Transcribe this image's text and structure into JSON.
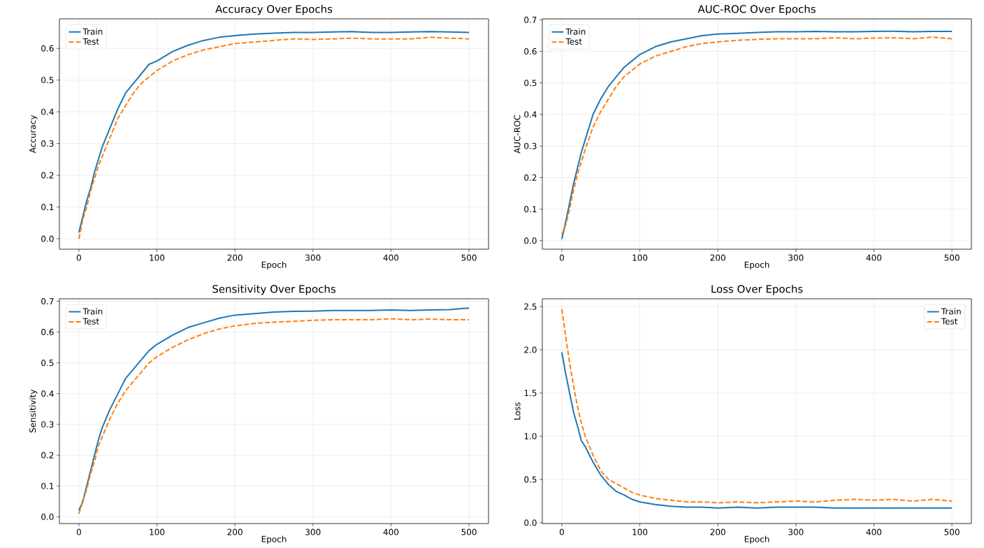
{
  "chart_data": [
    {
      "type": "line",
      "title": "Accuracy Over Epochs",
      "xlabel": "Epoch",
      "ylabel": "Accuracy",
      "grid": true,
      "legend": "top left",
      "marker": "none",
      "x": [
        0,
        5,
        10,
        15,
        20,
        25,
        30,
        40,
        50,
        60,
        70,
        80,
        90,
        100,
        120,
        140,
        160,
        180,
        200,
        225,
        250,
        275,
        300,
        325,
        350,
        375,
        400,
        425,
        450,
        475,
        500
      ],
      "xlim": [
        -25,
        525
      ],
      "xticks": [
        0,
        100,
        200,
        300,
        400,
        500
      ],
      "ylim": [
        -0.033,
        0.693
      ],
      "yticks": [
        {
          "value": 0,
          "label": "0.0"
        },
        0.1,
        0.2,
        0.3,
        0.4,
        0.5,
        0.6
      ],
      "series": [
        {
          "name": "Train",
          "color": "#1f77b4",
          "line_style": "solid",
          "values": [
            0.02,
            0.07,
            0.12,
            0.16,
            0.21,
            0.25,
            0.29,
            0.35,
            0.41,
            0.46,
            0.49,
            0.52,
            0.55,
            0.56,
            0.59,
            0.61,
            0.625,
            0.635,
            0.64,
            0.645,
            0.648,
            0.65,
            0.65,
            0.652,
            0.653,
            0.65,
            0.65,
            0.652,
            0.653,
            0.652,
            0.65
          ]
        },
        {
          "name": "Test",
          "color": "#ff7f0e",
          "line_style": "dashed",
          "values": [
            0.0,
            0.06,
            0.1,
            0.15,
            0.19,
            0.23,
            0.26,
            0.32,
            0.38,
            0.42,
            0.46,
            0.49,
            0.51,
            0.53,
            0.56,
            0.58,
            0.595,
            0.605,
            0.615,
            0.62,
            0.625,
            0.63,
            0.628,
            0.63,
            0.632,
            0.63,
            0.63,
            0.63,
            0.635,
            0.632,
            0.63
          ]
        }
      ]
    },
    {
      "type": "line",
      "title": "AUC-ROC Over Epochs",
      "xlabel": "Epoch",
      "ylabel": "AUC-ROC",
      "grid": true,
      "legend": "top left",
      "marker": "none",
      "x": [
        0,
        5,
        10,
        15,
        20,
        25,
        30,
        40,
        50,
        60,
        70,
        80,
        90,
        100,
        120,
        140,
        160,
        180,
        200,
        225,
        250,
        275,
        300,
        325,
        350,
        375,
        400,
        425,
        450,
        475,
        500
      ],
      "xlim": [
        -25,
        525
      ],
      "xticks": [
        0,
        100,
        200,
        300,
        400,
        500
      ],
      "ylim": [
        -0.027,
        0.703
      ],
      "yticks": [
        {
          "value": 0,
          "label": "0.0"
        },
        0.1,
        0.2,
        0.3,
        0.4,
        0.5,
        0.6,
        0.7
      ],
      "series": [
        {
          "name": "Train",
          "color": "#1f77b4",
          "line_style": "solid",
          "values": [
            0.005,
            0.06,
            0.12,
            0.18,
            0.23,
            0.28,
            0.32,
            0.4,
            0.45,
            0.49,
            0.52,
            0.55,
            0.57,
            0.59,
            0.615,
            0.63,
            0.64,
            0.65,
            0.655,
            0.657,
            0.66,
            0.662,
            0.662,
            0.663,
            0.662,
            0.662,
            0.663,
            0.664,
            0.662,
            0.663,
            0.663
          ]
        },
        {
          "name": "Test",
          "color": "#ff7f0e",
          "line_style": "dashed",
          "values": [
            0.02,
            0.05,
            0.1,
            0.16,
            0.21,
            0.25,
            0.29,
            0.36,
            0.41,
            0.45,
            0.49,
            0.52,
            0.54,
            0.56,
            0.585,
            0.6,
            0.615,
            0.625,
            0.63,
            0.635,
            0.638,
            0.64,
            0.64,
            0.64,
            0.643,
            0.64,
            0.642,
            0.643,
            0.64,
            0.645,
            0.64
          ]
        }
      ]
    },
    {
      "type": "line",
      "title": "Sensitivity Over Epochs",
      "xlabel": "Epoch",
      "ylabel": "Sensitivity",
      "grid": true,
      "legend": "top left",
      "marker": "none",
      "x": [
        0,
        5,
        10,
        15,
        20,
        25,
        30,
        40,
        50,
        60,
        70,
        80,
        90,
        100,
        120,
        140,
        160,
        180,
        200,
        225,
        250,
        275,
        300,
        325,
        350,
        375,
        400,
        425,
        450,
        475,
        500
      ],
      "xlim": [
        -25,
        525
      ],
      "xticks": [
        0,
        100,
        200,
        300,
        400,
        500
      ],
      "ylim": [
        -0.022,
        0.708
      ],
      "yticks": [
        {
          "value": 0,
          "label": "0.0"
        },
        0.1,
        0.2,
        0.3,
        0.4,
        0.5,
        0.6,
        0.7
      ],
      "series": [
        {
          "name": "Train",
          "color": "#1f77b4",
          "line_style": "solid",
          "values": [
            0.02,
            0.05,
            0.1,
            0.15,
            0.2,
            0.25,
            0.29,
            0.35,
            0.4,
            0.45,
            0.48,
            0.51,
            0.54,
            0.56,
            0.59,
            0.615,
            0.63,
            0.645,
            0.655,
            0.66,
            0.665,
            0.667,
            0.668,
            0.67,
            0.67,
            0.67,
            0.672,
            0.67,
            0.672,
            0.673,
            0.678
          ]
        },
        {
          "name": "Test",
          "color": "#ff7f0e",
          "line_style": "dashed",
          "values": [
            0.01,
            0.05,
            0.09,
            0.14,
            0.18,
            0.23,
            0.26,
            0.32,
            0.37,
            0.41,
            0.44,
            0.47,
            0.5,
            0.52,
            0.55,
            0.575,
            0.595,
            0.61,
            0.62,
            0.628,
            0.632,
            0.635,
            0.638,
            0.64,
            0.64,
            0.64,
            0.643,
            0.64,
            0.642,
            0.64,
            0.64
          ]
        }
      ]
    },
    {
      "type": "line",
      "title": "Loss Over Epochs",
      "xlabel": "Epoch",
      "ylabel": "Loss",
      "grid": true,
      "legend": "top right",
      "marker": "none",
      "x": [
        0,
        5,
        10,
        15,
        20,
        25,
        30,
        40,
        50,
        60,
        70,
        80,
        90,
        100,
        120,
        140,
        160,
        180,
        200,
        225,
        250,
        275,
        300,
        325,
        350,
        375,
        400,
        425,
        450,
        475,
        500
      ],
      "xlim": [
        -25,
        525
      ],
      "xticks": [
        0,
        100,
        200,
        300,
        400,
        500
      ],
      "ylim": [
        -0.01,
        2.59
      ],
      "yticks": [
        {
          "value": 0,
          "label": "0.0"
        },
        0.5,
        {
          "value": 1,
          "label": "1.0"
        },
        1.5,
        {
          "value": 2,
          "label": "2.0"
        },
        2.5
      ],
      "series": [
        {
          "name": "Train",
          "color": "#1f77b4",
          "line_style": "solid",
          "values": [
            1.97,
            1.72,
            1.5,
            1.28,
            1.12,
            0.95,
            0.88,
            0.7,
            0.55,
            0.44,
            0.36,
            0.32,
            0.27,
            0.24,
            0.21,
            0.19,
            0.18,
            0.18,
            0.17,
            0.18,
            0.17,
            0.18,
            0.18,
            0.18,
            0.17,
            0.17,
            0.17,
            0.17,
            0.17,
            0.17,
            0.17
          ]
        },
        {
          "name": "Test",
          "color": "#ff7f0e",
          "line_style": "dashed",
          "values": [
            2.47,
            2.15,
            1.85,
            1.58,
            1.35,
            1.15,
            1.0,
            0.78,
            0.6,
            0.5,
            0.45,
            0.4,
            0.35,
            0.32,
            0.28,
            0.26,
            0.24,
            0.24,
            0.23,
            0.24,
            0.23,
            0.24,
            0.25,
            0.24,
            0.26,
            0.27,
            0.26,
            0.27,
            0.25,
            0.27,
            0.25
          ]
        }
      ]
    }
  ]
}
